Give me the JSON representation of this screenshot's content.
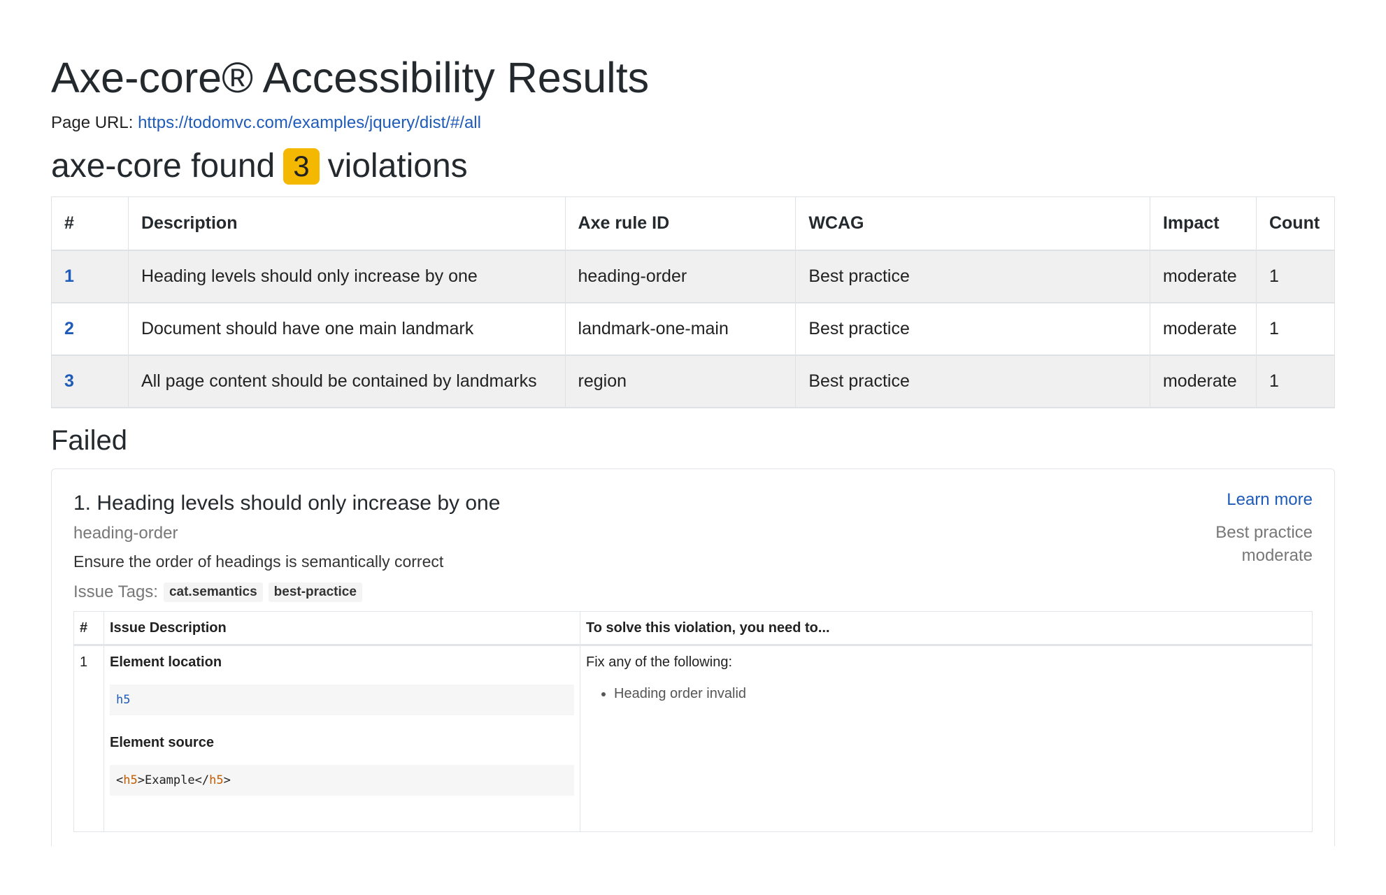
{
  "title": "Axe-core® Accessibility Results",
  "page_url_label": "Page URL:",
  "page_url": "https://todomvc.com/examples/jquery/dist/#/all",
  "summary": {
    "prefix": "axe-core found",
    "count": "3",
    "suffix": "violations"
  },
  "table": {
    "headers": [
      "#",
      "Description",
      "Axe rule ID",
      "WCAG",
      "Impact",
      "Count"
    ],
    "rows": [
      {
        "n": "1",
        "desc": "Heading levels should only increase by one",
        "rule": "heading-order",
        "wcag": "Best practice",
        "impact": "moderate",
        "count": "1"
      },
      {
        "n": "2",
        "desc": "Document should have one main landmark",
        "rule": "landmark-one-main",
        "wcag": "Best practice",
        "impact": "moderate",
        "count": "1"
      },
      {
        "n": "3",
        "desc": "All page content should be contained by landmarks",
        "rule": "region",
        "wcag": "Best practice",
        "impact": "moderate",
        "count": "1"
      }
    ]
  },
  "failed": {
    "heading": "Failed",
    "card": {
      "title": "1. Heading levels should only increase by one",
      "rule": "heading-order",
      "description": "Ensure the order of headings is semantically correct",
      "tags_label": "Issue Tags:",
      "tags": [
        "cat.semantics",
        "best-practice"
      ],
      "learn_more": "Learn more",
      "wcag": "Best practice",
      "impact": "moderate",
      "table": {
        "headers": [
          "#",
          "Issue Description",
          "To solve this violation, you need to..."
        ],
        "row": {
          "n": "1",
          "location_label": "Element location",
          "location": "h5",
          "source_label": "Element source",
          "source": {
            "lt": "<",
            "tag": "h5",
            "mid": ">Example</",
            "tag2": "h5",
            "gt": ">"
          },
          "fix_label": "Fix any of the following:",
          "fixes": [
            "Heading order invalid"
          ]
        }
      }
    }
  }
}
